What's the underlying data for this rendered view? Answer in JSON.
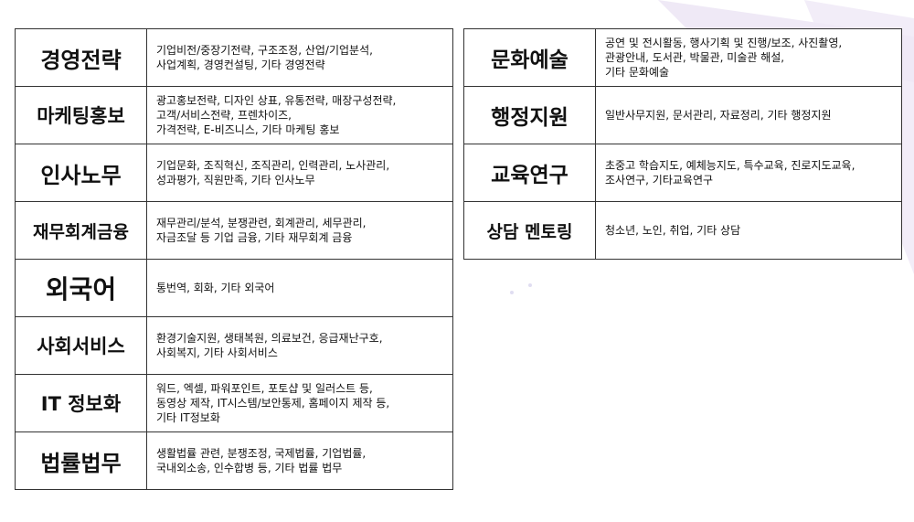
{
  "left_table": {
    "rows": [
      {
        "category": "경영전략",
        "lines": [
          "기업비전/중장기전략, 구조조정, 산업/기업분석,",
          "사업계획, 경영컨설팅, 기타 경영전략"
        ]
      },
      {
        "category": "마케팅홍보",
        "lines": [
          "광고홍보전략, 디자인 상표, 유통전략, 매장구성전략,",
          "고객/서비스전략, 프렌차이즈,",
          "가격전략, E-비즈니스, 기타  마케팅 홍보"
        ]
      },
      {
        "category": "인사노무",
        "lines": [
          "기업문화, 조직혁신, 조직관리, 인력관리, 노사관리,",
          "성과평가, 직원만족, 기타 인사노무"
        ]
      },
      {
        "category": "재무회계금융",
        "lines": [
          "재무관리/분석, 분쟁관련, 회계관리, 세무관리,",
          "자금조달 등 기업 금융, 기타 재무회계 금융"
        ]
      },
      {
        "category": "외국어",
        "lines": [
          "통번역, 회화, 기타 외국어"
        ]
      },
      {
        "category": "사회서비스",
        "lines": [
          "환경기술지원, 생태복원, 의료보건, 응급재난구호,",
          "사회복지, 기타 사회서비스"
        ]
      },
      {
        "category": "IT 정보화",
        "lines": [
          "워드, 엑셀, 파워포인트, 포토샵 및 일러스트 등,",
          "동영상 제작, IT시스템/보안통제, 홈페이지 제작 등,",
          "기타 IT정보화"
        ]
      },
      {
        "category": "법률법무",
        "lines": [
          "생활법률 관련, 분쟁조정, 국제법률, 기업법률,",
          "국내외소송, 인수합병 등, 기타 법률 법무"
        ]
      }
    ]
  },
  "right_table": {
    "rows": [
      {
        "category": "문화예술",
        "lines": [
          "공연 및 전시활동, 행사기획 및 진행/보조, 사진촬영,",
          "관광안내, 도서관, 박물관, 미술관 해설,",
          "기타 문화예술"
        ]
      },
      {
        "category": "행정지원",
        "lines": [
          "일반사무지원, 문서관리, 자료정리, 기타 행정지원"
        ]
      },
      {
        "category": "교육연구",
        "lines": [
          "초중고 학습지도, 예체능지도, 특수교육, 진로지도교육,",
          "조사연구, 기타교육연구"
        ]
      },
      {
        "category": "상담 멘토링",
        "lines": [
          "청소년, 노인, 취업, 기타 상담"
        ]
      }
    ]
  }
}
